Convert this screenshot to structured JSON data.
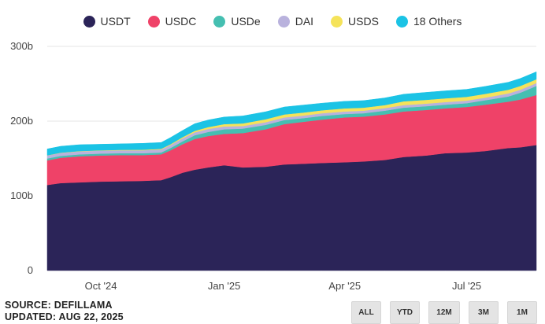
{
  "source_line": "SOURCE: DEFILLAMA",
  "updated_line": "UPDATED: AUG 22, 2025",
  "range_buttons": [
    "ALL",
    "YTD",
    "12M",
    "3M",
    "1M"
  ],
  "colors": {
    "USDT": "#2b2458",
    "USDC": "#ef4268",
    "USDe": "#45bfb1",
    "DAI": "#b9b2dd",
    "USDS": "#f5e35a",
    "18 Others": "#1bc3e5",
    "grid": "#e6e6e6",
    "axis_text": "#444444"
  },
  "chart_data": {
    "type": "area",
    "stacked": true,
    "title": "",
    "xlabel": "",
    "ylabel": "",
    "ylim": [
      0,
      300
    ],
    "yticks": [
      0,
      100,
      200,
      300
    ],
    "ytick_labels": [
      "0",
      "100b",
      "200b",
      "300b"
    ],
    "xlim": [
      "2024-08-22",
      "2025-08-22"
    ],
    "xtick_labels": [
      {
        "date": "2024-10-01",
        "label": "Oct '24"
      },
      {
        "date": "2025-01-01",
        "label": "Jan '25"
      },
      {
        "date": "2025-04-01",
        "label": "Apr '25"
      },
      {
        "date": "2025-07-01",
        "label": "Jul '25"
      }
    ],
    "grid": true,
    "legend_position": "top-center",
    "x": [
      "2024-08-22",
      "2024-09-01",
      "2024-09-15",
      "2024-10-01",
      "2024-10-15",
      "2024-11-01",
      "2024-11-08",
      "2024-11-15",
      "2024-11-22",
      "2024-12-01",
      "2024-12-10",
      "2024-12-20",
      "2025-01-01",
      "2025-01-15",
      "2025-02-01",
      "2025-02-15",
      "2025-03-01",
      "2025-03-15",
      "2025-04-01",
      "2025-04-15",
      "2025-05-01",
      "2025-05-15",
      "2025-06-01",
      "2025-06-15",
      "2025-07-01",
      "2025-07-15",
      "2025-08-01",
      "2025-08-10",
      "2025-08-22"
    ],
    "series": [
      {
        "name": "USDT",
        "values": [
          114.5,
          117,
          118,
          119,
          119.5,
          120,
          120.5,
          121,
          125,
          131,
          135,
          138,
          141,
          138,
          139,
          142,
          143,
          144,
          145,
          146,
          148,
          152,
          154,
          157,
          158,
          160,
          164,
          165,
          168
        ]
      },
      {
        "name": "USDC",
        "values": [
          33,
          34,
          35,
          35,
          35,
          34.5,
          34.5,
          34.5,
          36,
          38,
          41,
          42,
          42,
          46,
          50,
          54,
          56,
          58,
          60,
          60,
          61,
          61,
          61,
          60,
          61,
          62,
          62,
          64,
          67
        ]
      },
      {
        "name": "USDe",
        "values": [
          2.5,
          2.5,
          2.5,
          2.5,
          2.5,
          2.5,
          2.5,
          2.5,
          3,
          4,
          5,
          5.5,
          6,
          6,
          6,
          5.5,
          5,
          5,
          4.5,
          4.5,
          5,
          5,
          5,
          5,
          5,
          6,
          7,
          9,
          12
        ]
      },
      {
        "name": "DAI",
        "values": [
          4,
          4,
          4,
          4,
          4,
          4,
          4,
          4,
          4,
          4,
          4,
          4,
          4,
          3.5,
          3.5,
          3.5,
          3.5,
          3.5,
          3.5,
          3.5,
          3.5,
          3.5,
          3.5,
          3.5,
          3.5,
          3.5,
          4,
          4,
          4
        ]
      },
      {
        "name": "USDS",
        "values": [
          0.2,
          0.3,
          0.4,
          0.5,
          0.6,
          0.7,
          0.8,
          0.9,
          1,
          1.5,
          2,
          2.5,
          3,
          3.5,
          4,
          4,
          4,
          4,
          4,
          4,
          4,
          5,
          5,
          5,
          5,
          5,
          5,
          5,
          5
        ]
      },
      {
        "name": "18 Others",
        "values": [
          8.5,
          8.5,
          8.5,
          8,
          8,
          8.5,
          8.5,
          8.5,
          9,
          9,
          9.5,
          9.5,
          9.5,
          10,
          10,
          10,
          10,
          9.5,
          9.5,
          9.5,
          9.5,
          9.5,
          10,
          10,
          10,
          10,
          10,
          10,
          10
        ]
      }
    ]
  }
}
